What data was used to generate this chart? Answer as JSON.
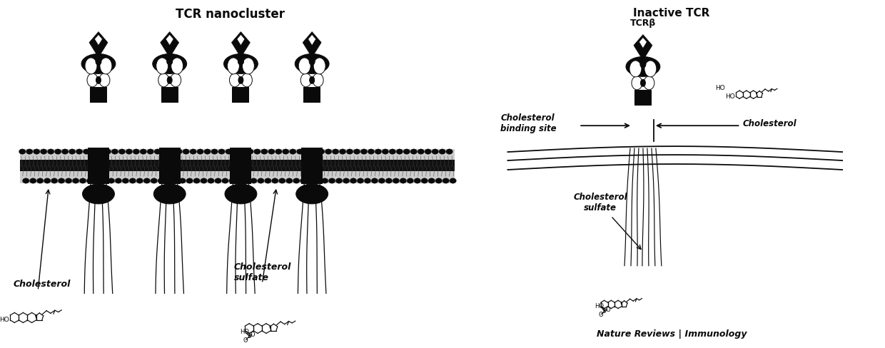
{
  "title_left": "TCR nanocluster",
  "title_right": "Inactive TCR",
  "label_tcrb": "TCRβ",
  "label_cholesterol_left": "Cholesterol",
  "label_cholesterol_sulfate_left": "Cholesterol\nsulfate",
  "label_cholesterol_binding": "Cholesterol\nbinding site",
  "label_cholesterol_right": "Cholesterol",
  "label_cholesterol_sulfate_right": "Cholesterol\nsulfate",
  "footer": "Nature Reviews | Immunology",
  "bg_color": "#ffffff",
  "fg_color": "#000000",
  "fig_width": 12.4,
  "fig_height": 4.88,
  "dpi": 100
}
